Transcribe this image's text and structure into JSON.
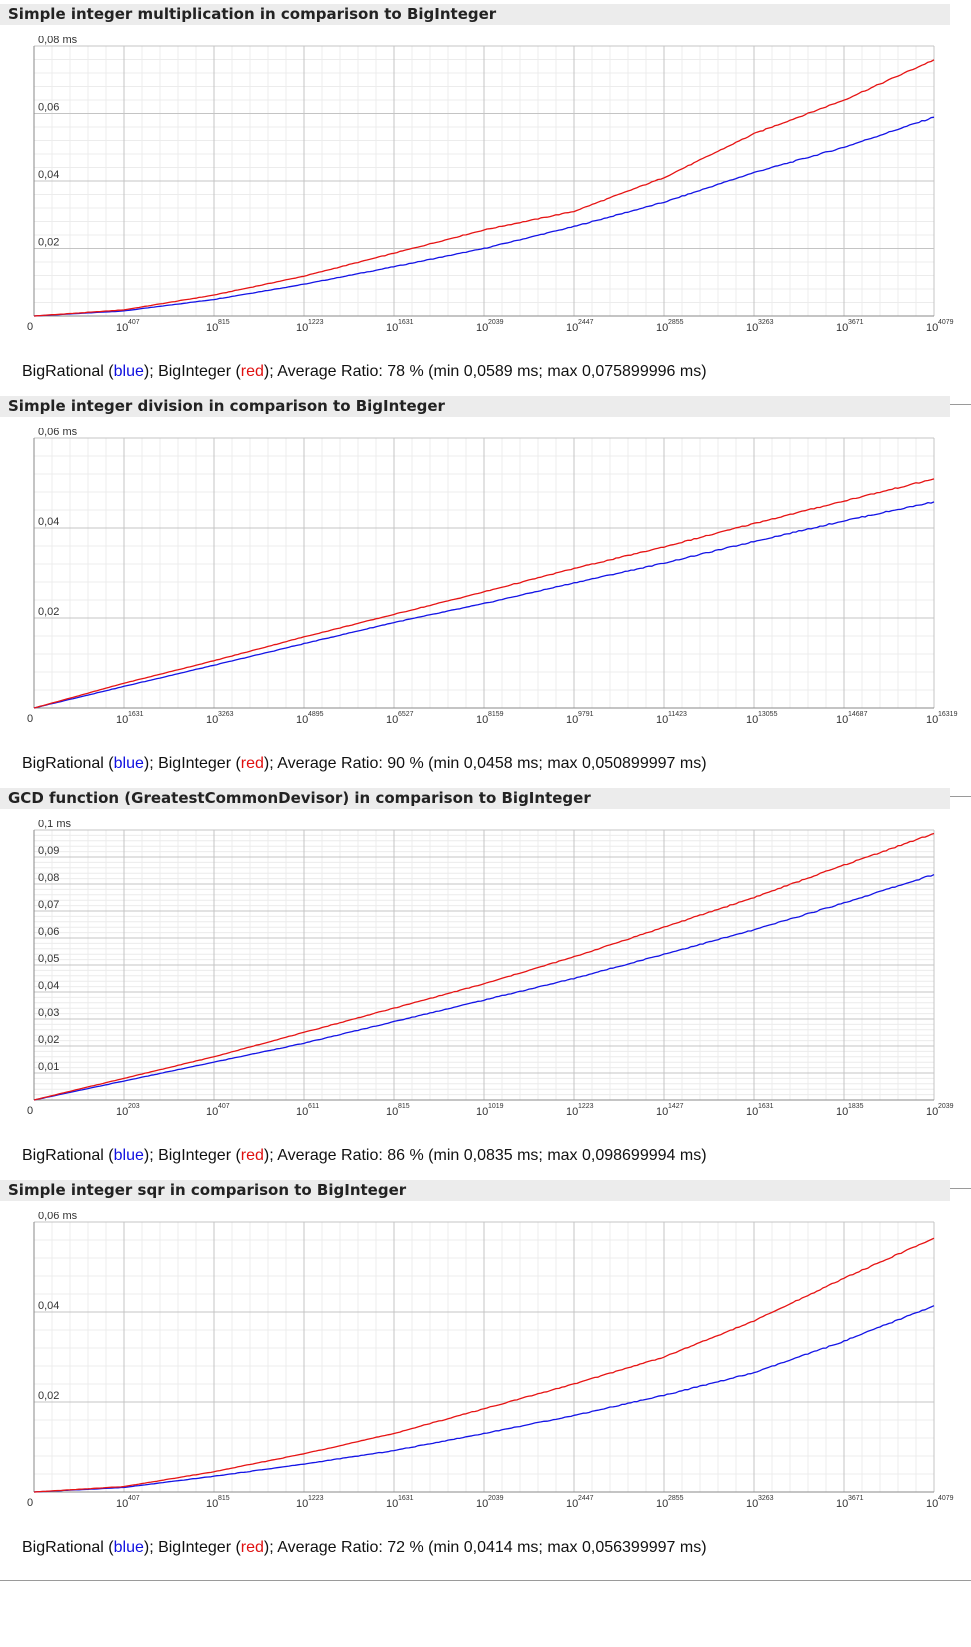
{
  "legend": {
    "blue": "blue",
    "red": "red",
    "blue_color": "#1414e6",
    "red_color": "#e61414"
  },
  "chart_data": [
    {
      "type": "line",
      "title": "Simple integer multiplication in comparison to BigInteger",
      "y_unit": "ms",
      "y_ticks": [
        "0,02",
        "0,04",
        "0,06",
        "0,08 ms"
      ],
      "ylim": [
        0,
        0.08
      ],
      "x_base": "10",
      "x_tick_exponents": [
        "407",
        "815",
        "1223",
        "1631",
        "2039",
        "2447",
        "2855",
        "3263",
        "3671",
        "4079"
      ],
      "xlim": [
        0,
        4079
      ],
      "series": [
        {
          "name": "BigRational",
          "color": "#1414e6",
          "x": [
            0,
            407,
            815,
            1223,
            1631,
            2039,
            2447,
            2855,
            3263,
            3671,
            4079
          ],
          "y": [
            0,
            0.0015,
            0.0049,
            0.0094,
            0.0146,
            0.02,
            0.0265,
            0.0337,
            0.0425,
            0.05,
            0.0589
          ]
        },
        {
          "name": "BigInteger",
          "color": "#e61414",
          "x": [
            0,
            407,
            815,
            1223,
            1631,
            2039,
            2447,
            2855,
            3263,
            3671,
            4079
          ],
          "y": [
            0,
            0.0018,
            0.0062,
            0.0118,
            0.0186,
            0.0255,
            0.031,
            0.041,
            0.054,
            0.064,
            0.0759
          ]
        }
      ],
      "caption_prefix": "BigRational (",
      "caption_mid": "); BigInteger (",
      "caption_suffix": "); Average Ratio: 78 % (min 0,0589 ms; max 0,075899996 ms)"
    },
    {
      "type": "line",
      "title": "Simple integer division in comparison to BigInteger",
      "y_unit": "ms",
      "y_ticks": [
        "0,02",
        "0,04",
        "0,06 ms"
      ],
      "ylim": [
        0,
        0.06
      ],
      "x_base": "10",
      "x_tick_exponents": [
        "1631",
        "3263",
        "4895",
        "6527",
        "8159",
        "9791",
        "11423",
        "13055",
        "14687",
        "16319"
      ],
      "xlim": [
        0,
        16319
      ],
      "series": [
        {
          "name": "BigRational",
          "color": "#1414e6",
          "x": [
            0,
            1631,
            3263,
            4895,
            6527,
            8159,
            9791,
            11423,
            13055,
            14687,
            16319
          ],
          "y": [
            0,
            0.0048,
            0.0095,
            0.0143,
            0.019,
            0.0232,
            0.0278,
            0.0322,
            0.037,
            0.0416,
            0.0458
          ]
        },
        {
          "name": "BigInteger",
          "color": "#e61414",
          "x": [
            0,
            1631,
            3263,
            4895,
            6527,
            8159,
            9791,
            11423,
            13055,
            14687,
            16319
          ],
          "y": [
            0,
            0.0055,
            0.0105,
            0.0158,
            0.0208,
            0.0258,
            0.031,
            0.0358,
            0.041,
            0.046,
            0.0509
          ]
        }
      ],
      "caption_prefix": "BigRational (",
      "caption_mid": "); BigInteger (",
      "caption_suffix": "); Average Ratio: 90 % (min 0,0458 ms; max 0,050899997 ms)"
    },
    {
      "type": "line",
      "title": "GCD function (GreatestCommonDevisor) in comparison to BigInteger",
      "y_unit": "ms",
      "y_ticks": [
        "0,01",
        "0,02",
        "0,03",
        "0,04",
        "0,05",
        "0,06",
        "0,07",
        "0,08",
        "0,09",
        "0,1 ms"
      ],
      "ylim": [
        0,
        0.1
      ],
      "x_base": "10",
      "x_tick_exponents": [
        "203",
        "407",
        "611",
        "815",
        "1019",
        "1223",
        "1427",
        "1631",
        "1835",
        "2039"
      ],
      "xlim": [
        0,
        2039
      ],
      "series": [
        {
          "name": "BigRational",
          "color": "#1414e6",
          "x": [
            0,
            203,
            407,
            611,
            815,
            1019,
            1223,
            1427,
            1631,
            1835,
            2039
          ],
          "y": [
            0,
            0.007,
            0.014,
            0.021,
            0.029,
            0.037,
            0.045,
            0.054,
            0.063,
            0.073,
            0.0835
          ]
        },
        {
          "name": "BigInteger",
          "color": "#e61414",
          "x": [
            0,
            203,
            407,
            611,
            815,
            1019,
            1223,
            1427,
            1631,
            1835,
            2039
          ],
          "y": [
            0,
            0.008,
            0.016,
            0.025,
            0.034,
            0.043,
            0.053,
            0.064,
            0.075,
            0.087,
            0.0987
          ]
        }
      ],
      "caption_prefix": "BigRational (",
      "caption_mid": "); BigInteger (",
      "caption_suffix": "); Average Ratio: 86 % (min 0,0835 ms; max 0,098699994 ms)"
    },
    {
      "type": "line",
      "title": "Simple integer sqr in comparison to BigInteger",
      "y_unit": "ms",
      "y_ticks": [
        "0,02",
        "0,04",
        "0,06 ms"
      ],
      "ylim": [
        0,
        0.06
      ],
      "x_base": "10",
      "x_tick_exponents": [
        "407",
        "815",
        "1223",
        "1631",
        "2039",
        "2447",
        "2855",
        "3263",
        "3671",
        "4079"
      ],
      "xlim": [
        0,
        4079
      ],
      "series": [
        {
          "name": "BigRational",
          "color": "#1414e6",
          "x": [
            0,
            407,
            815,
            1223,
            1631,
            2039,
            2447,
            2855,
            3263,
            3671,
            4079
          ],
          "y": [
            0,
            0.001,
            0.0035,
            0.0062,
            0.0092,
            0.013,
            0.017,
            0.0215,
            0.0265,
            0.0335,
            0.0414
          ]
        },
        {
          "name": "BigInteger",
          "color": "#e61414",
          "x": [
            0,
            407,
            815,
            1223,
            1631,
            2039,
            2447,
            2855,
            3263,
            3671,
            4079
          ],
          "y": [
            0,
            0.0012,
            0.0045,
            0.0085,
            0.013,
            0.0185,
            0.024,
            0.03,
            0.038,
            0.0475,
            0.0564
          ]
        }
      ],
      "caption_prefix": "BigRational (",
      "caption_mid": "); BigInteger (",
      "caption_suffix": "); Average Ratio: 72 % (min 0,0414 ms; max 0,056399997 ms)"
    }
  ]
}
